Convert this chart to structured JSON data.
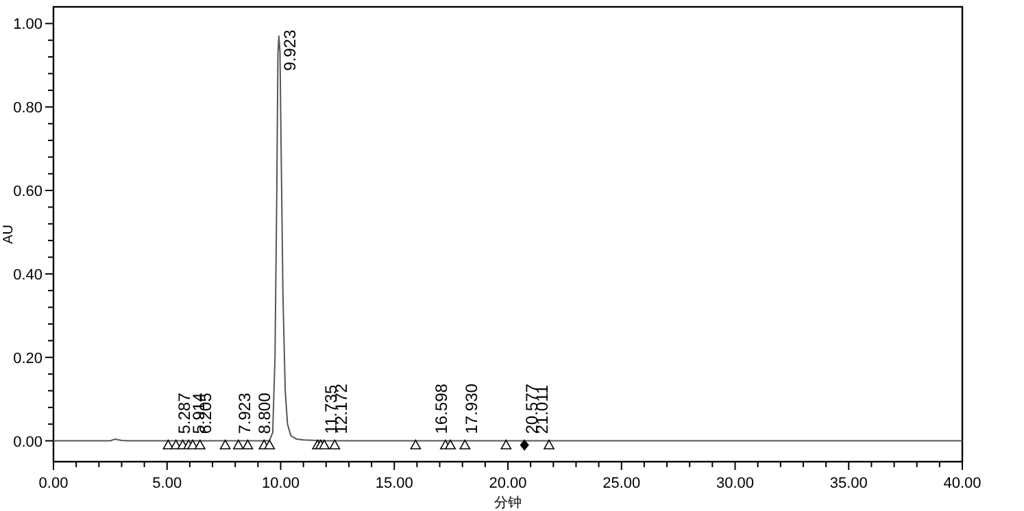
{
  "chart_data": {
    "type": "line",
    "xlabel": "分钟",
    "ylabel": "AU",
    "xlim": [
      0,
      40
    ],
    "ylim": [
      -0.05,
      1.04
    ],
    "xticks": [
      {
        "value": 0,
        "label": "0.00"
      },
      {
        "value": 1,
        "label": null
      },
      {
        "value": 2,
        "label": null
      },
      {
        "value": 3,
        "label": null
      },
      {
        "value": 4,
        "label": null
      },
      {
        "value": 5,
        "label": "5.00"
      },
      {
        "value": 6,
        "label": null
      },
      {
        "value": 7,
        "label": null
      },
      {
        "value": 8,
        "label": null
      },
      {
        "value": 9,
        "label": null
      },
      {
        "value": 10,
        "label": "10.00"
      },
      {
        "value": 11,
        "label": null
      },
      {
        "value": 12,
        "label": null
      },
      {
        "value": 13,
        "label": null
      },
      {
        "value": 14,
        "label": null
      },
      {
        "value": 15,
        "label": "15.00"
      },
      {
        "value": 16,
        "label": null
      },
      {
        "value": 17,
        "label": null
      },
      {
        "value": 18,
        "label": null
      },
      {
        "value": 19,
        "label": null
      },
      {
        "value": 20,
        "label": "20.00"
      },
      {
        "value": 21,
        "label": null
      },
      {
        "value": 22,
        "label": null
      },
      {
        "value": 23,
        "label": null
      },
      {
        "value": 24,
        "label": null
      },
      {
        "value": 25,
        "label": "25.00"
      },
      {
        "value": 26,
        "label": null
      },
      {
        "value": 27,
        "label": null
      },
      {
        "value": 28,
        "label": null
      },
      {
        "value": 29,
        "label": null
      },
      {
        "value": 30,
        "label": "30.00"
      },
      {
        "value": 31,
        "label": null
      },
      {
        "value": 32,
        "label": null
      },
      {
        "value": 33,
        "label": null
      },
      {
        "value": 34,
        "label": null
      },
      {
        "value": 35,
        "label": "35.00"
      },
      {
        "value": 36,
        "label": null
      },
      {
        "value": 37,
        "label": null
      },
      {
        "value": 38,
        "label": null
      },
      {
        "value": 39,
        "label": null
      },
      {
        "value": 40,
        "label": "40.00"
      }
    ],
    "yticks": [
      {
        "value": 0,
        "label": "0.00"
      },
      {
        "value": 0.04,
        "label": null
      },
      {
        "value": 0.08,
        "label": null
      },
      {
        "value": 0.12,
        "label": null
      },
      {
        "value": 0.16,
        "label": null
      },
      {
        "value": 0.2,
        "label": "0.20"
      },
      {
        "value": 0.24,
        "label": null
      },
      {
        "value": 0.28,
        "label": null
      },
      {
        "value": 0.32,
        "label": null
      },
      {
        "value": 0.36,
        "label": null
      },
      {
        "value": 0.4,
        "label": "0.40"
      },
      {
        "value": 0.44,
        "label": null
      },
      {
        "value": 0.48,
        "label": null
      },
      {
        "value": 0.52,
        "label": null
      },
      {
        "value": 0.56,
        "label": null
      },
      {
        "value": 0.6,
        "label": "0.60"
      },
      {
        "value": 0.64,
        "label": null
      },
      {
        "value": 0.68,
        "label": null
      },
      {
        "value": 0.72,
        "label": null
      },
      {
        "value": 0.76,
        "label": null
      },
      {
        "value": 0.8,
        "label": "0.80"
      },
      {
        "value": 0.84,
        "label": null
      },
      {
        "value": 0.88,
        "label": null
      },
      {
        "value": 0.92,
        "label": null
      },
      {
        "value": 0.96,
        "label": null
      },
      {
        "value": 1,
        "label": "1.00"
      }
    ],
    "grid": false,
    "series": [
      {
        "color": "#555555",
        "line_style": "solid",
        "marker": "none",
        "x": [
          0,
          2.5,
          2.7,
          3.0,
          3.3,
          9.5,
          9.65,
          9.75,
          9.83,
          9.88,
          9.923,
          9.97,
          10.02,
          10.1,
          10.2,
          10.3,
          10.45,
          10.7,
          11,
          12,
          40
        ],
        "values": [
          0,
          0,
          0.004,
          0.001,
          0,
          0,
          0.02,
          0.2,
          0.6,
          0.93,
          0.97,
          0.93,
          0.7,
          0.35,
          0.12,
          0.04,
          0.012,
          0.004,
          0.002,
          0,
          0
        ]
      },
      {
        "type": "scatter",
        "color": "#000000",
        "marker": "triangle",
        "x": [
          5.05,
          5.39,
          5.69,
          5.95,
          6.13,
          6.45,
          7.56,
          8.14,
          8.55,
          9.27,
          9.51,
          11.62,
          11.76,
          11.92,
          12.38,
          15.94,
          17.25,
          17.47,
          18.11,
          19.92,
          21.81
        ],
        "values": [
          -0.01,
          -0.01,
          -0.01,
          -0.01,
          -0.01,
          -0.01,
          -0.01,
          -0.01,
          -0.01,
          -0.01,
          -0.01,
          -0.01,
          -0.01,
          -0.01,
          -0.01,
          -0.01,
          -0.01,
          -0.01,
          -0.01,
          -0.01,
          -0.01
        ]
      },
      {
        "type": "scatter",
        "color": "#000000",
        "marker": "diamond",
        "x": [
          20.73
        ],
        "values": [
          -0.01
        ]
      }
    ],
    "annotations": [
      {
        "text": "5.287",
        "x": 5.287,
        "y": 0
      },
      {
        "text": "5.914",
        "x": 5.914,
        "y": 0
      },
      {
        "text": "6.205",
        "x": 6.205,
        "y": 0
      },
      {
        "text": "7.923",
        "x": 7.923,
        "y": 0
      },
      {
        "text": "8.800",
        "x": 8.8,
        "y": 0
      },
      {
        "text": "9.923",
        "x": 9.923,
        "y": 0.87
      },
      {
        "text": "11.735",
        "x": 11.735,
        "y": 0
      },
      {
        "text": "12.172",
        "x": 12.172,
        "y": 0
      },
      {
        "text": "16.598",
        "x": 16.598,
        "y": 0
      },
      {
        "text": "17.930",
        "x": 17.93,
        "y": 0
      },
      {
        "text": "20.577",
        "x": 20.577,
        "y": 0
      },
      {
        "text": "21.011",
        "x": 21.011,
        "y": 0
      }
    ]
  }
}
